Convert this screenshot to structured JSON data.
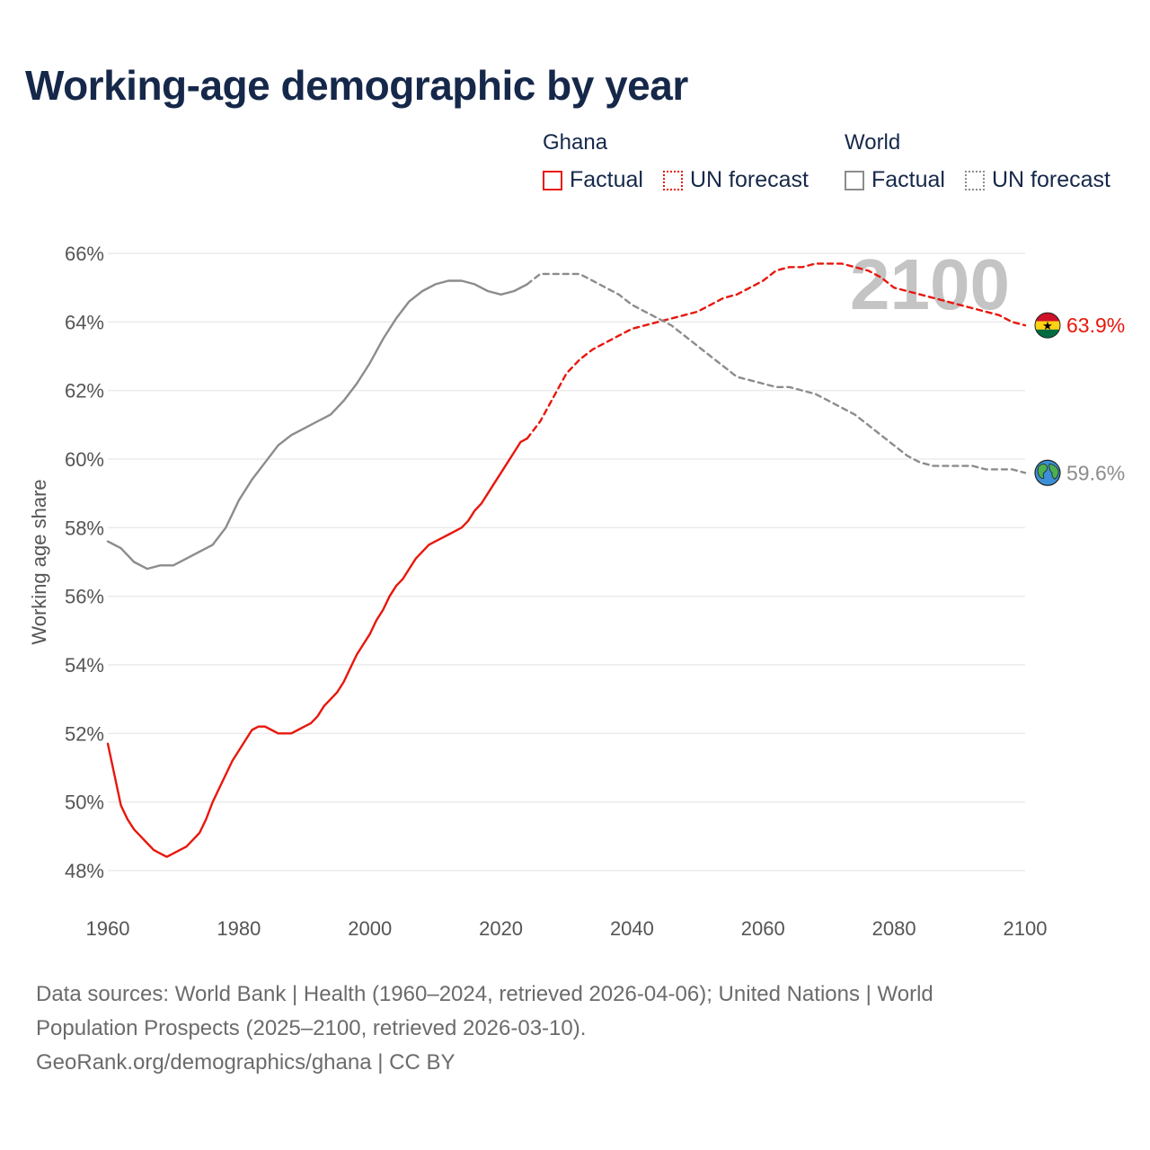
{
  "title": "Working-age demographic by year",
  "legend": {
    "ghana": {
      "title": "Ghana",
      "factual": "Factual",
      "forecast": "UN forecast"
    },
    "world": {
      "title": "World",
      "factual": "Factual",
      "forecast": "UN forecast"
    }
  },
  "colors": {
    "ghana": "#e8170c",
    "world": "#8c8c8c",
    "grid": "#e6e6e6",
    "watermark": "#c4c4c4"
  },
  "chart_data": {
    "type": "line",
    "title": "Working-age demographic by year",
    "xlabel": "",
    "ylabel": "Working age share",
    "xlim": [
      1960,
      2100
    ],
    "ylim": [
      48,
      66
    ],
    "x_ticks": [
      1960,
      1980,
      2000,
      2020,
      2040,
      2060,
      2080,
      2100
    ],
    "y_ticks": [
      48,
      50,
      52,
      54,
      56,
      58,
      60,
      62,
      64,
      66
    ],
    "y_tick_suffix": "%",
    "year_watermark": "2100",
    "series": [
      {
        "name": "Ghana (Factual)",
        "style": "solid",
        "x": [
          1960,
          1961,
          1962,
          1963,
          1964,
          1965,
          1966,
          1967,
          1968,
          1969,
          1970,
          1971,
          1972,
          1973,
          1974,
          1975,
          1976,
          1977,
          1978,
          1979,
          1980,
          1981,
          1982,
          1983,
          1984,
          1985,
          1986,
          1987,
          1988,
          1989,
          1990,
          1991,
          1992,
          1993,
          1994,
          1995,
          1996,
          1997,
          1998,
          1999,
          2000,
          2001,
          2002,
          2003,
          2004,
          2005,
          2006,
          2007,
          2008,
          2009,
          2010,
          2011,
          2012,
          2013,
          2014,
          2015,
          2016,
          2017,
          2018,
          2019,
          2020,
          2021,
          2022,
          2023,
          2024
        ],
        "values": [
          51.7,
          50.8,
          49.9,
          49.5,
          49.2,
          49.0,
          48.8,
          48.6,
          48.5,
          48.4,
          48.5,
          48.6,
          48.7,
          48.9,
          49.1,
          49.5,
          50.0,
          50.4,
          50.8,
          51.2,
          51.5,
          51.8,
          52.1,
          52.2,
          52.2,
          52.1,
          52.0,
          52.0,
          52.0,
          52.1,
          52.2,
          52.3,
          52.5,
          52.8,
          53.0,
          53.2,
          53.5,
          53.9,
          54.3,
          54.6,
          54.9,
          55.3,
          55.6,
          56.0,
          56.3,
          56.5,
          56.8,
          57.1,
          57.3,
          57.5,
          57.6,
          57.7,
          57.8,
          57.9,
          58.0,
          58.2,
          58.5,
          58.7,
          59.0,
          59.3,
          59.6,
          59.9,
          60.2,
          60.5,
          60.6
        ]
      },
      {
        "name": "Ghana (UN forecast)",
        "style": "dashed",
        "x": [
          2024,
          2026,
          2028,
          2030,
          2032,
          2034,
          2036,
          2038,
          2040,
          2042,
          2044,
          2046,
          2048,
          2050,
          2052,
          2054,
          2056,
          2058,
          2060,
          2062,
          2064,
          2066,
          2068,
          2070,
          2072,
          2074,
          2076,
          2078,
          2080,
          2082,
          2084,
          2086,
          2088,
          2090,
          2092,
          2094,
          2096,
          2098,
          2100
        ],
        "values": [
          60.6,
          61.1,
          61.8,
          62.5,
          62.9,
          63.2,
          63.4,
          63.6,
          63.8,
          63.9,
          64.0,
          64.1,
          64.2,
          64.3,
          64.5,
          64.7,
          64.8,
          65.0,
          65.2,
          65.5,
          65.6,
          65.6,
          65.7,
          65.7,
          65.7,
          65.6,
          65.5,
          65.3,
          65.0,
          64.9,
          64.8,
          64.7,
          64.6,
          64.5,
          64.4,
          64.3,
          64.2,
          64.0,
          63.9
        ]
      },
      {
        "name": "World (Factual)",
        "style": "solid",
        "x": [
          1960,
          1962,
          1964,
          1966,
          1968,
          1970,
          1972,
          1974,
          1976,
          1978,
          1980,
          1982,
          1984,
          1986,
          1988,
          1990,
          1992,
          1994,
          1996,
          1998,
          2000,
          2002,
          2004,
          2006,
          2008,
          2010,
          2012,
          2014,
          2016,
          2018,
          2020,
          2022,
          2024
        ],
        "values": [
          57.6,
          57.4,
          57.0,
          56.8,
          56.9,
          56.9,
          57.1,
          57.3,
          57.5,
          58.0,
          58.8,
          59.4,
          59.9,
          60.4,
          60.7,
          60.9,
          61.1,
          61.3,
          61.7,
          62.2,
          62.8,
          63.5,
          64.1,
          64.6,
          64.9,
          65.1,
          65.2,
          65.2,
          65.1,
          64.9,
          64.8,
          64.9,
          65.1
        ]
      },
      {
        "name": "World (UN forecast)",
        "style": "dashed",
        "x": [
          2024,
          2026,
          2028,
          2030,
          2032,
          2034,
          2036,
          2038,
          2040,
          2042,
          2044,
          2046,
          2048,
          2050,
          2052,
          2054,
          2056,
          2058,
          2060,
          2062,
          2064,
          2066,
          2068,
          2070,
          2072,
          2074,
          2076,
          2078,
          2080,
          2082,
          2084,
          2086,
          2088,
          2090,
          2092,
          2094,
          2096,
          2098,
          2100
        ],
        "values": [
          65.1,
          65.4,
          65.4,
          65.4,
          65.4,
          65.2,
          65.0,
          64.8,
          64.5,
          64.3,
          64.1,
          63.9,
          63.6,
          63.3,
          63.0,
          62.7,
          62.4,
          62.3,
          62.2,
          62.1,
          62.1,
          62.0,
          61.9,
          61.7,
          61.5,
          61.3,
          61.0,
          60.7,
          60.4,
          60.1,
          59.9,
          59.8,
          59.8,
          59.8,
          59.8,
          59.7,
          59.7,
          59.7,
          59.6
        ]
      }
    ],
    "end_labels": [
      {
        "series": "Ghana",
        "value": 63.9,
        "text": "63.9%"
      },
      {
        "series": "World",
        "value": 59.6,
        "text": "59.6%"
      }
    ]
  },
  "footer": {
    "line1": "Data sources: World Bank | Health (1960–2024, retrieved 2026-04-06); United Nations | World",
    "line2": "Population Prospects (2025–2100, retrieved 2026-03-10).",
    "line3": "GeoRank.org/demographics/ghana | CC BY"
  }
}
